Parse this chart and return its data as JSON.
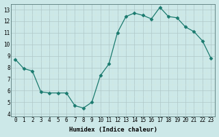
{
  "x": [
    0,
    1,
    2,
    3,
    4,
    5,
    6,
    7,
    8,
    9,
    10,
    11,
    12,
    13,
    14,
    15,
    16,
    17,
    18,
    19,
    20,
    21,
    22,
    23
  ],
  "y": [
    8.7,
    7.9,
    7.7,
    5.9,
    5.8,
    5.8,
    5.8,
    4.7,
    4.5,
    5.0,
    7.3,
    8.3,
    11.0,
    12.4,
    12.7,
    12.5,
    12.2,
    13.2,
    12.4,
    12.3,
    11.5,
    11.1,
    10.3,
    8.8
  ],
  "line_color": "#1a7a6e",
  "marker": "D",
  "marker_size": 2.5,
  "bg_color": "#cce8e8",
  "grid_color_major": "#b8d4d4",
  "grid_color_minor": "#d8ecec",
  "xlabel": "Humidex (Indice chaleur)",
  "xlim": [
    -0.5,
    23.5
  ],
  "ylim": [
    3.8,
    13.5
  ],
  "yticks": [
    4,
    5,
    6,
    7,
    8,
    9,
    10,
    11,
    12,
    13
  ],
  "xticks": [
    0,
    1,
    2,
    3,
    4,
    5,
    6,
    7,
    8,
    9,
    10,
    11,
    12,
    13,
    14,
    15,
    16,
    17,
    18,
    19,
    20,
    21,
    22,
    23
  ],
  "label_fontsize": 6.5,
  "tick_fontsize": 5.5
}
